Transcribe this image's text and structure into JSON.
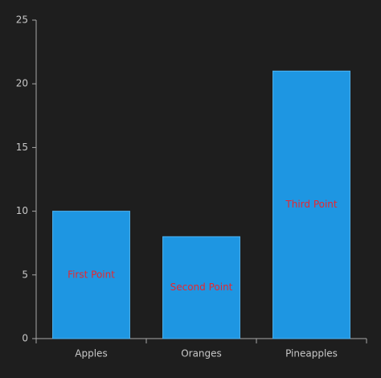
{
  "chart_data": {
    "type": "bar",
    "categories": [
      "Apples",
      "Oranges",
      "Pineapples"
    ],
    "values": [
      10,
      8,
      21
    ],
    "point_labels": [
      "First Point",
      "Second Point",
      "Third Point"
    ],
    "color": "#1e96e2",
    "ylim": [
      0,
      25
    ],
    "yticks": [
      0,
      5,
      10,
      15,
      20,
      25
    ]
  }
}
